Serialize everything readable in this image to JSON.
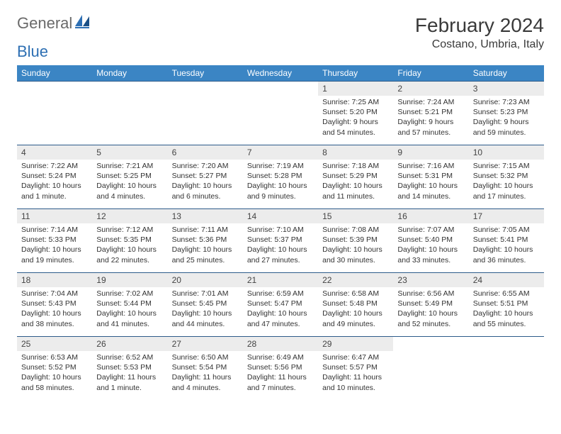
{
  "logo": {
    "t1": "General",
    "t2": "Blue"
  },
  "title": "February 2024",
  "location": "Costano, Umbria, Italy",
  "colors": {
    "header_bg": "#3b85c4",
    "header_text": "#ffffff",
    "row_border": "#2d5b8a",
    "daynum_bg": "#ececec",
    "logo_blue": "#2d6fb3",
    "logo_gray": "#6a6a6a"
  },
  "weekdays": [
    "Sunday",
    "Monday",
    "Tuesday",
    "Wednesday",
    "Thursday",
    "Friday",
    "Saturday"
  ],
  "weeks": [
    [
      {
        "n": "",
        "sr": "",
        "ss": "",
        "dl": ""
      },
      {
        "n": "",
        "sr": "",
        "ss": "",
        "dl": ""
      },
      {
        "n": "",
        "sr": "",
        "ss": "",
        "dl": ""
      },
      {
        "n": "",
        "sr": "",
        "ss": "",
        "dl": ""
      },
      {
        "n": "1",
        "sr": "Sunrise: 7:25 AM",
        "ss": "Sunset: 5:20 PM",
        "dl": "Daylight: 9 hours and 54 minutes."
      },
      {
        "n": "2",
        "sr": "Sunrise: 7:24 AM",
        "ss": "Sunset: 5:21 PM",
        "dl": "Daylight: 9 hours and 57 minutes."
      },
      {
        "n": "3",
        "sr": "Sunrise: 7:23 AM",
        "ss": "Sunset: 5:23 PM",
        "dl": "Daylight: 9 hours and 59 minutes."
      }
    ],
    [
      {
        "n": "4",
        "sr": "Sunrise: 7:22 AM",
        "ss": "Sunset: 5:24 PM",
        "dl": "Daylight: 10 hours and 1 minute."
      },
      {
        "n": "5",
        "sr": "Sunrise: 7:21 AM",
        "ss": "Sunset: 5:25 PM",
        "dl": "Daylight: 10 hours and 4 minutes."
      },
      {
        "n": "6",
        "sr": "Sunrise: 7:20 AM",
        "ss": "Sunset: 5:27 PM",
        "dl": "Daylight: 10 hours and 6 minutes."
      },
      {
        "n": "7",
        "sr": "Sunrise: 7:19 AM",
        "ss": "Sunset: 5:28 PM",
        "dl": "Daylight: 10 hours and 9 minutes."
      },
      {
        "n": "8",
        "sr": "Sunrise: 7:18 AM",
        "ss": "Sunset: 5:29 PM",
        "dl": "Daylight: 10 hours and 11 minutes."
      },
      {
        "n": "9",
        "sr": "Sunrise: 7:16 AM",
        "ss": "Sunset: 5:31 PM",
        "dl": "Daylight: 10 hours and 14 minutes."
      },
      {
        "n": "10",
        "sr": "Sunrise: 7:15 AM",
        "ss": "Sunset: 5:32 PM",
        "dl": "Daylight: 10 hours and 17 minutes."
      }
    ],
    [
      {
        "n": "11",
        "sr": "Sunrise: 7:14 AM",
        "ss": "Sunset: 5:33 PM",
        "dl": "Daylight: 10 hours and 19 minutes."
      },
      {
        "n": "12",
        "sr": "Sunrise: 7:12 AM",
        "ss": "Sunset: 5:35 PM",
        "dl": "Daylight: 10 hours and 22 minutes."
      },
      {
        "n": "13",
        "sr": "Sunrise: 7:11 AM",
        "ss": "Sunset: 5:36 PM",
        "dl": "Daylight: 10 hours and 25 minutes."
      },
      {
        "n": "14",
        "sr": "Sunrise: 7:10 AM",
        "ss": "Sunset: 5:37 PM",
        "dl": "Daylight: 10 hours and 27 minutes."
      },
      {
        "n": "15",
        "sr": "Sunrise: 7:08 AM",
        "ss": "Sunset: 5:39 PM",
        "dl": "Daylight: 10 hours and 30 minutes."
      },
      {
        "n": "16",
        "sr": "Sunrise: 7:07 AM",
        "ss": "Sunset: 5:40 PM",
        "dl": "Daylight: 10 hours and 33 minutes."
      },
      {
        "n": "17",
        "sr": "Sunrise: 7:05 AM",
        "ss": "Sunset: 5:41 PM",
        "dl": "Daylight: 10 hours and 36 minutes."
      }
    ],
    [
      {
        "n": "18",
        "sr": "Sunrise: 7:04 AM",
        "ss": "Sunset: 5:43 PM",
        "dl": "Daylight: 10 hours and 38 minutes."
      },
      {
        "n": "19",
        "sr": "Sunrise: 7:02 AM",
        "ss": "Sunset: 5:44 PM",
        "dl": "Daylight: 10 hours and 41 minutes."
      },
      {
        "n": "20",
        "sr": "Sunrise: 7:01 AM",
        "ss": "Sunset: 5:45 PM",
        "dl": "Daylight: 10 hours and 44 minutes."
      },
      {
        "n": "21",
        "sr": "Sunrise: 6:59 AM",
        "ss": "Sunset: 5:47 PM",
        "dl": "Daylight: 10 hours and 47 minutes."
      },
      {
        "n": "22",
        "sr": "Sunrise: 6:58 AM",
        "ss": "Sunset: 5:48 PM",
        "dl": "Daylight: 10 hours and 49 minutes."
      },
      {
        "n": "23",
        "sr": "Sunrise: 6:56 AM",
        "ss": "Sunset: 5:49 PM",
        "dl": "Daylight: 10 hours and 52 minutes."
      },
      {
        "n": "24",
        "sr": "Sunrise: 6:55 AM",
        "ss": "Sunset: 5:51 PM",
        "dl": "Daylight: 10 hours and 55 minutes."
      }
    ],
    [
      {
        "n": "25",
        "sr": "Sunrise: 6:53 AM",
        "ss": "Sunset: 5:52 PM",
        "dl": "Daylight: 10 hours and 58 minutes."
      },
      {
        "n": "26",
        "sr": "Sunrise: 6:52 AM",
        "ss": "Sunset: 5:53 PM",
        "dl": "Daylight: 11 hours and 1 minute."
      },
      {
        "n": "27",
        "sr": "Sunrise: 6:50 AM",
        "ss": "Sunset: 5:54 PM",
        "dl": "Daylight: 11 hours and 4 minutes."
      },
      {
        "n": "28",
        "sr": "Sunrise: 6:49 AM",
        "ss": "Sunset: 5:56 PM",
        "dl": "Daylight: 11 hours and 7 minutes."
      },
      {
        "n": "29",
        "sr": "Sunrise: 6:47 AM",
        "ss": "Sunset: 5:57 PM",
        "dl": "Daylight: 11 hours and 10 minutes."
      },
      {
        "n": "",
        "sr": "",
        "ss": "",
        "dl": ""
      },
      {
        "n": "",
        "sr": "",
        "ss": "",
        "dl": ""
      }
    ]
  ]
}
